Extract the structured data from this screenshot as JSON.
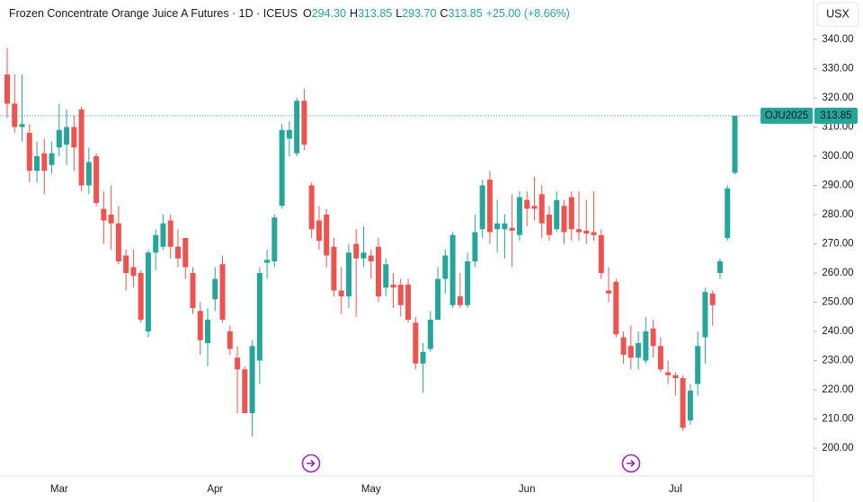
{
  "chart_data": {
    "type": "candlestick",
    "title": "Frozen Concentrate Orange Juice A Futures · 1D · ICEUS",
    "ohlc_header": [
      {
        "label": "O",
        "value": "294.30"
      },
      {
        "label": "H",
        "value": "313.85"
      },
      {
        "label": "L",
        "value": "293.70"
      },
      {
        "label": "C",
        "value": "313.85"
      }
    ],
    "change": "+25.00 (+8.66%)",
    "currency": "USX",
    "last_price": {
      "symbol": "OJU2025",
      "label": "313.85",
      "value": 313.85
    },
    "up_color": "#26a69a",
    "down_color": "#ef5350",
    "grid": false,
    "categories": [
      null,
      null,
      null,
      null,
      null,
      null,
      null,
      "Mar",
      null,
      null,
      null,
      null,
      null,
      null,
      null,
      null,
      null,
      null,
      null,
      null,
      null,
      null,
      null,
      null,
      null,
      null,
      null,
      null,
      "Apr",
      null,
      null,
      null,
      null,
      null,
      null,
      null,
      null,
      null,
      null,
      null,
      null,
      null,
      null,
      null,
      null,
      null,
      null,
      null,
      null,
      "May",
      null,
      null,
      null,
      null,
      null,
      null,
      null,
      null,
      null,
      null,
      null,
      null,
      null,
      null,
      null,
      null,
      null,
      null,
      null,
      null,
      "Jun",
      null,
      null,
      null,
      null,
      null,
      null,
      null,
      null,
      null,
      null,
      null,
      null,
      null,
      null,
      null,
      null,
      null,
      null,
      null,
      "Jul",
      null,
      null,
      null,
      null,
      null,
      null,
      null,
      null
    ],
    "open": [
      328,
      318,
      310,
      308,
      295,
      301,
      297,
      303,
      304,
      310,
      316,
      290,
      300,
      282,
      280,
      277,
      266,
      262,
      260,
      240,
      267,
      269,
      278,
      269,
      272,
      260,
      247,
      236,
      251,
      263,
      240,
      231,
      227,
      212,
      230,
      263.5,
      264,
      283,
      306,
      301,
      319,
      290,
      278,
      280,
      269,
      254,
      252,
      270,
      265,
      266,
      269,
      255,
      256,
      256,
      256,
      243,
      229,
      234,
      244,
      258,
      249,
      252,
      249,
      264,
      275,
      292,
      275,
      275,
      275.5,
      273,
      285,
      283,
      287,
      280,
      275,
      283,
      286,
      275,
      274.5,
      274,
      273,
      254,
      257,
      238,
      235,
      231,
      230,
      241,
      235,
      226,
      225,
      224,
      209.5,
      222,
      238,
      253,
      260,
      272,
      294.3
    ],
    "high": [
      337,
      328,
      328,
      311,
      305,
      306,
      305,
      318,
      316,
      314,
      317,
      303,
      301,
      288,
      290,
      283,
      268,
      268,
      261,
      268,
      275,
      280,
      280,
      275,
      272,
      262,
      250,
      248,
      262,
      266,
      242,
      235,
      228,
      237,
      262,
      268,
      280,
      311,
      312,
      320,
      323,
      291,
      283,
      282,
      272,
      262,
      270,
      275,
      276,
      268,
      272,
      265,
      260,
      258,
      258,
      245,
      236,
      247,
      262,
      268,
      274,
      260,
      267,
      280,
      292,
      295,
      285,
      280,
      287,
      288,
      288,
      293,
      290,
      283,
      288,
      285,
      288,
      288,
      285,
      288,
      275,
      262,
      258,
      240,
      242,
      240,
      245,
      244,
      238,
      230,
      226,
      225,
      222,
      240,
      255,
      254,
      265,
      290,
      313.85
    ],
    "low": [
      313,
      308,
      305,
      291,
      291,
      287,
      294,
      300,
      297,
      295,
      288,
      287,
      283,
      270,
      268,
      263,
      254,
      255,
      243,
      238,
      261,
      268,
      265,
      262,
      258,
      246,
      232,
      228,
      247,
      243,
      232,
      212,
      212,
      204,
      222,
      258,
      262,
      282,
      300,
      300,
      302,
      272,
      268,
      262,
      252,
      246,
      248,
      245,
      262,
      258,
      250,
      252,
      248,
      245,
      243,
      227,
      219,
      233,
      244,
      253,
      248,
      248,
      248,
      262,
      272,
      270,
      267,
      265,
      262,
      271,
      276,
      278,
      272,
      271,
      274,
      270,
      271,
      271,
      270,
      271,
      258,
      250,
      238,
      229,
      227,
      227,
      229,
      231,
      226,
      222,
      218,
      206,
      208,
      218,
      229,
      242,
      258,
      271,
      293.7
    ],
    "close": [
      318,
      310,
      311,
      295,
      300,
      295,
      301,
      309,
      310,
      303,
      290,
      298,
      284,
      278,
      277,
      264,
      260,
      259,
      244,
      267,
      273,
      277,
      269,
      265,
      262,
      248,
      237,
      244,
      258,
      244,
      234,
      227,
      212,
      235,
      260,
      264.5,
      279,
      309,
      309,
      319,
      304,
      275,
      271,
      266,
      254,
      252,
      267,
      265,
      267,
      264,
      252,
      263,
      255,
      249,
      244,
      229,
      233,
      244,
      258,
      266,
      273,
      249,
      264,
      274,
      290,
      274,
      277,
      277,
      274.5,
      286,
      282,
      282,
      277,
      273,
      285,
      274,
      275,
      274,
      273.5,
      273,
      260,
      253,
      239,
      232,
      231,
      236,
      240,
      235,
      227,
      225,
      224,
      207,
      219.7,
      235,
      253.5,
      249,
      264,
      289,
      313.85
    ],
    "ylim": [
      190.5,
      353.5
    ],
    "yticks": [
      {
        "value": 200,
        "label": "200.00"
      },
      {
        "value": 210,
        "label": "210.00"
      },
      {
        "value": 220,
        "label": "220.00"
      },
      {
        "value": 230,
        "label": "230.00"
      },
      {
        "value": 240,
        "label": "240.00"
      },
      {
        "value": 250,
        "label": "250.00"
      },
      {
        "value": 260,
        "label": "260.00"
      },
      {
        "value": 270,
        "label": "270.00"
      },
      {
        "value": 280,
        "label": "280.00"
      },
      {
        "value": 290,
        "label": "290.00"
      },
      {
        "value": 300,
        "label": "300.00"
      },
      {
        "value": 310,
        "label": "310.00"
      },
      {
        "value": 320,
        "label": "320.00"
      },
      {
        "value": 330,
        "label": "330.00"
      },
      {
        "value": 340,
        "label": "340.00"
      }
    ]
  }
}
